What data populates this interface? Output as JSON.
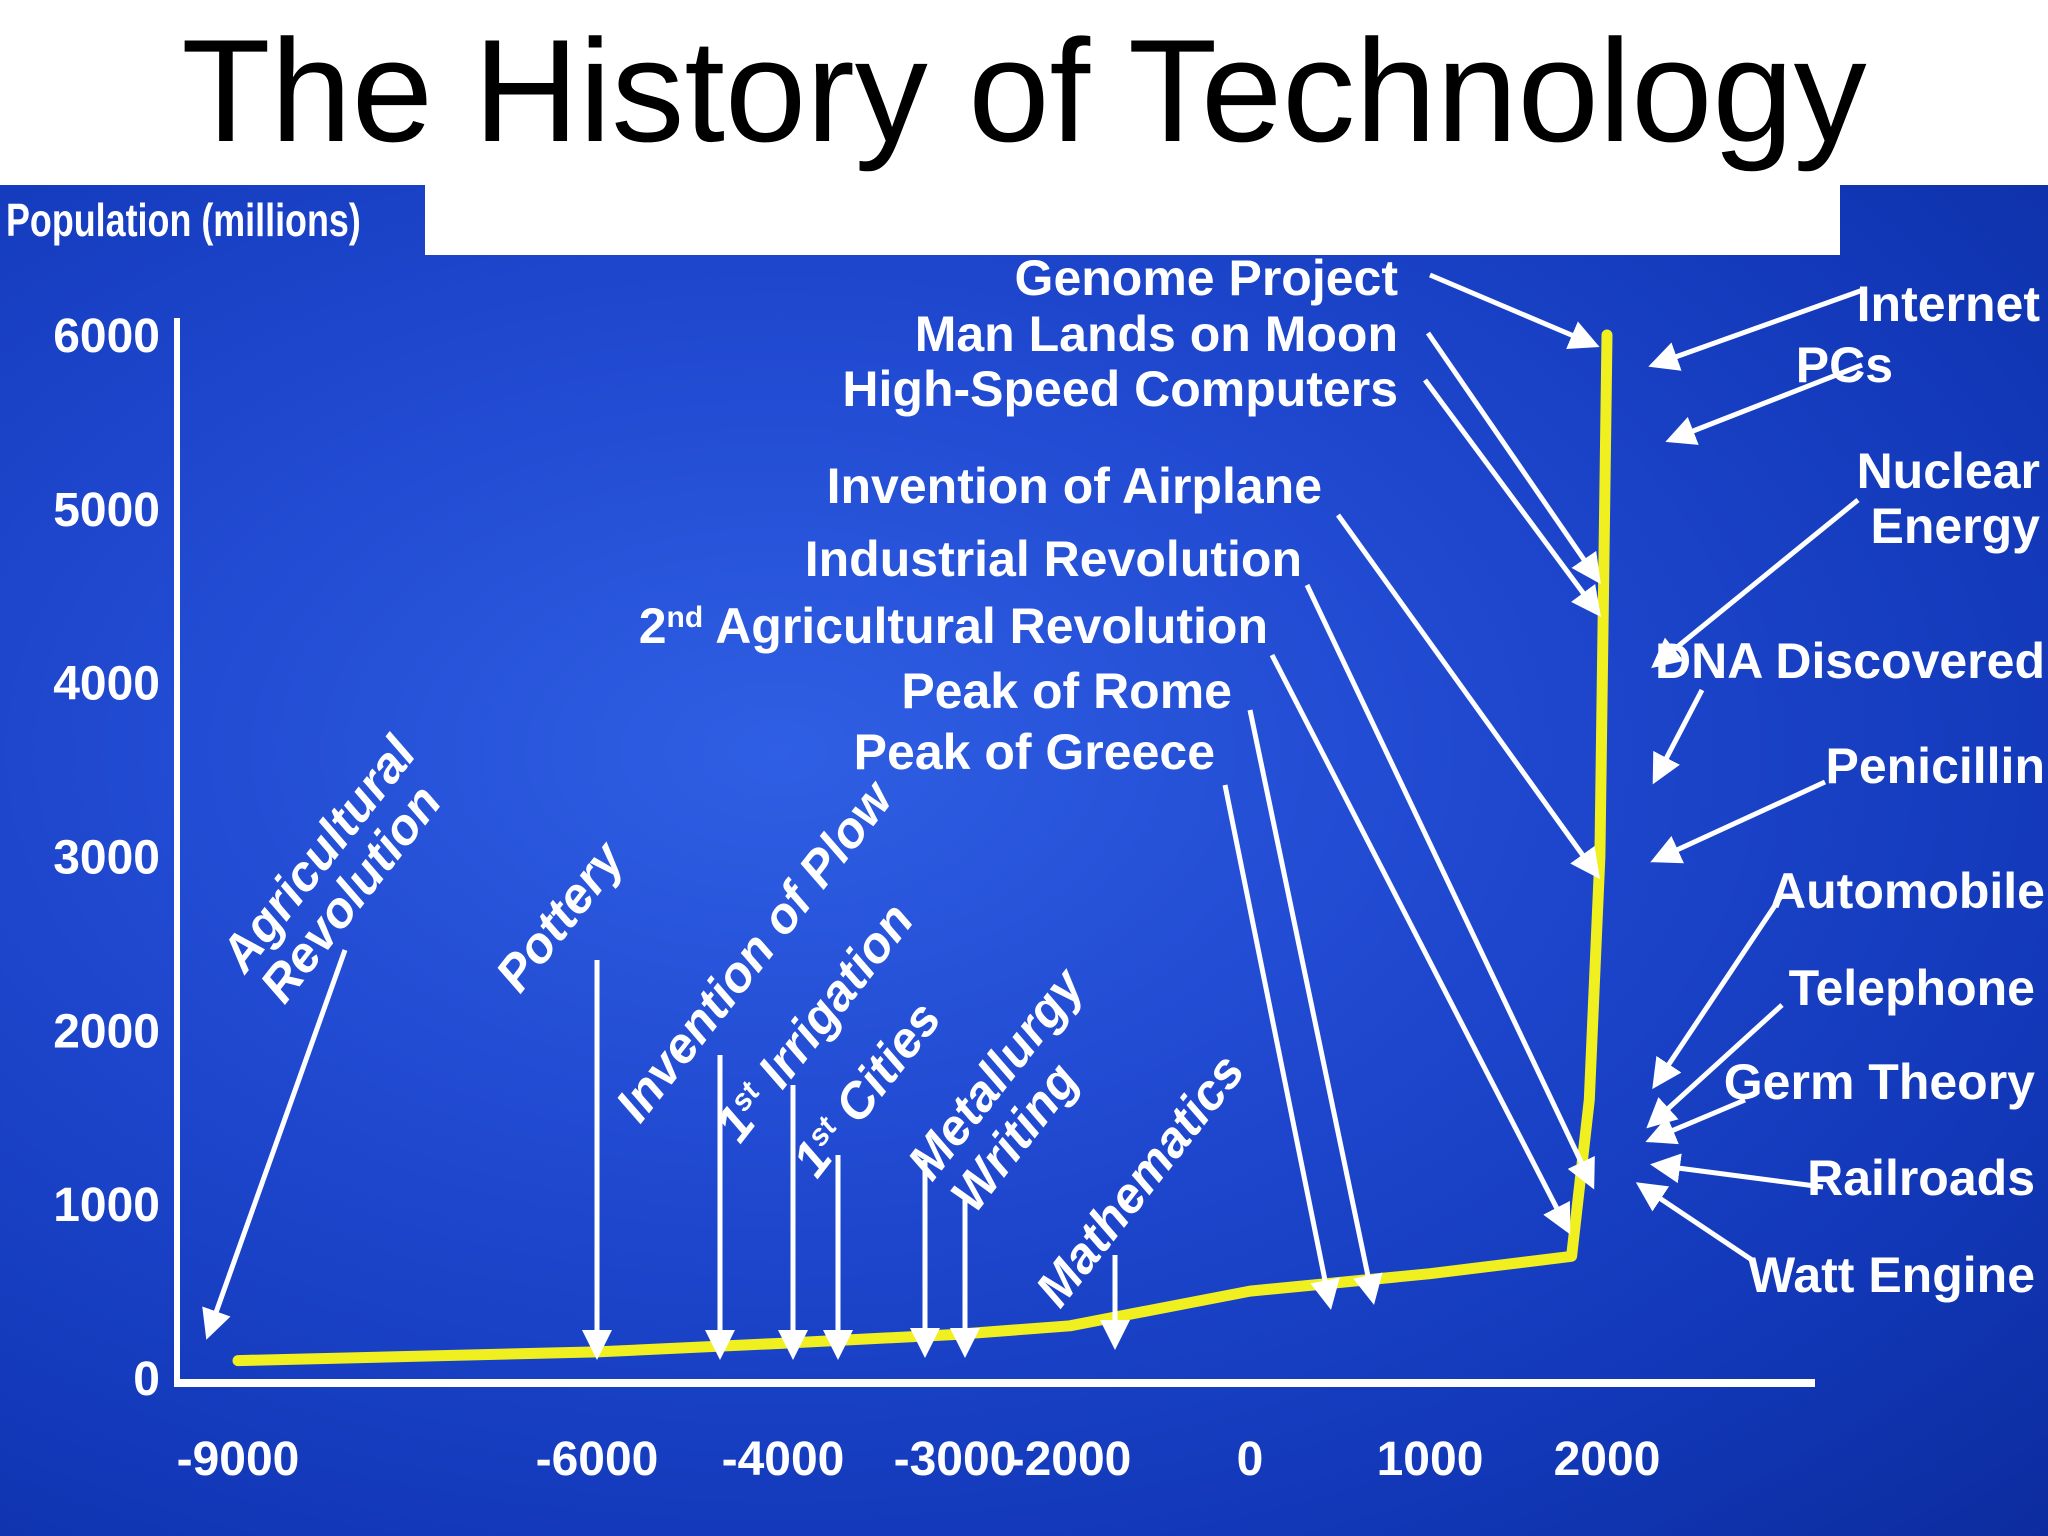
{
  "title": "The History of Technology",
  "chart_data": {
    "type": "line",
    "title": "The History of Technology",
    "ylabel": "Population (millions)",
    "xlabel": "",
    "ylim": [
      0,
      6000
    ],
    "y_ticks": [
      "0",
      "1000",
      "2000",
      "3000",
      "4000",
      "5000",
      "6000"
    ],
    "x_ticks": [
      "-9000",
      "-6000",
      "-4000",
      "-3000",
      "-2000",
      "0",
      "1000",
      "2000"
    ],
    "x_tick_values": [
      -9000,
      -6000,
      -4000,
      -3000,
      -2000,
      0,
      1000,
      2000
    ],
    "grid": false,
    "series": [
      {
        "name": "",
        "x": [
          -9000,
          -6000,
          -4000,
          -3000,
          -2000,
          0,
          1000,
          1800,
          1900,
          1960,
          2000
        ],
        "y": [
          100,
          150,
          200,
          250,
          300,
          500,
          600,
          700,
          1600,
          3000,
          6000
        ]
      }
    ],
    "annotations": [
      {
        "text": "Agricultural Revolution",
        "lines": [
          "Agricultural",
          "Revolution"
        ],
        "x": -9000
      },
      {
        "text": "Pottery",
        "x": -6000
      },
      {
        "text": "Invention of Plow",
        "x": -4700
      },
      {
        "text": "1st Irrigation",
        "base": "1",
        "sup": "st",
        "rest": " Irrigation",
        "x": -4000
      },
      {
        "text": "1st Cities",
        "base": "1",
        "sup": "st",
        "rest": " Cities",
        "x": -3700
      },
      {
        "text": "Metallurgy",
        "x": -3100
      },
      {
        "text": "Writing",
        "x": -2800
      },
      {
        "text": "Mathematics",
        "x": -2000
      },
      {
        "text": "Peak of Greece",
        "x": -400
      },
      {
        "text": "Peak of Rome",
        "x": 100
      },
      {
        "text": "2nd Agricultural Revolution",
        "base": "2",
        "sup": "nd",
        "rest": " Agricultural Revolution",
        "x": 1700
      },
      {
        "text": "Industrial Revolution",
        "x": 1760
      },
      {
        "text": "Invention of Airplane",
        "x": 1903
      },
      {
        "text": "High-Speed Computers",
        "x": 1950
      },
      {
        "text": "Man Lands on Moon",
        "x": 1969
      },
      {
        "text": "Genome Project",
        "x": 1990
      },
      {
        "text": "Internet",
        "x": 1991
      },
      {
        "text": "PCs",
        "x": 1981
      },
      {
        "text": "Nuclear Energy",
        "lines": [
          "Nuclear",
          "Energy"
        ],
        "x": 1945
      },
      {
        "text": "DNA Discovered",
        "x": 1953
      },
      {
        "text": "Penicillin",
        "x": 1928
      },
      {
        "text": "Automobile",
        "x": 1886
      },
      {
        "text": "Telephone",
        "x": 1876
      },
      {
        "text": "Germ Theory",
        "x": 1860
      },
      {
        "text": "Railroads",
        "x": 1825
      },
      {
        "text": "Watt Engine",
        "x": 1769
      }
    ],
    "colors": {
      "background": "#1f48cf",
      "line": "#f0f020",
      "axes": "#ffffff",
      "text": "#ffffff"
    }
  }
}
